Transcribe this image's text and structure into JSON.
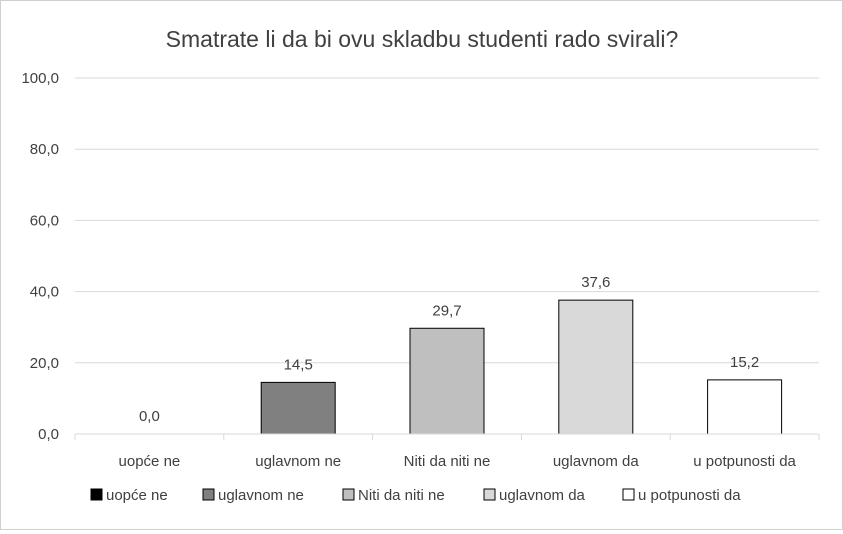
{
  "chart_data": {
    "type": "bar",
    "title": "Smatrate li da bi ovu skladbu studenti rado svirali?",
    "categories": [
      "uopće ne",
      "uglavnom ne",
      "Niti da niti ne",
      "uglavnom da",
      "u potpunosti da"
    ],
    "values": [
      0.0,
      14.5,
      29.7,
      37.6,
      15.2
    ],
    "value_labels": [
      "0,0",
      "14,5",
      "29,7",
      "37,6",
      "15,2"
    ],
    "colors": [
      "#000000",
      "#808080",
      "#bfbfbf",
      "#d9d9d9",
      "#ffffff"
    ],
    "ylim": [
      0,
      100
    ],
    "yticks": [
      0,
      20,
      40,
      60,
      80,
      100
    ],
    "ytick_labels": [
      "0,0",
      "20,0",
      "40,0",
      "60,0",
      "80,0",
      "100,0"
    ],
    "xlabel": "",
    "ylabel": "",
    "grid": true,
    "legend": {
      "position": "bottom",
      "entries": [
        "uopće ne",
        "uglavnom ne",
        "Niti da niti ne",
        "uglavnom da",
        "u potpunosti da"
      ]
    }
  }
}
